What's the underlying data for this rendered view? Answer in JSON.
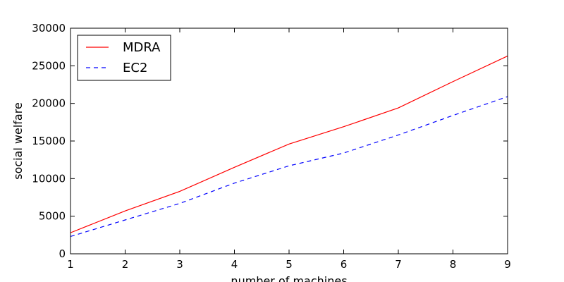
{
  "chart_data": {
    "type": "line",
    "title": "",
    "xlabel": "number of machines",
    "ylabel": "social welfare",
    "x": [
      1,
      2,
      3,
      4,
      5,
      6,
      7,
      8,
      9
    ],
    "xlim": [
      1,
      9
    ],
    "ylim": [
      0,
      30000
    ],
    "xticks": [
      1,
      2,
      3,
      4,
      5,
      6,
      7,
      8,
      9
    ],
    "yticks": [
      0,
      5000,
      10000,
      15000,
      20000,
      25000,
      30000
    ],
    "grid": false,
    "legend_position": "top-left",
    "series": [
      {
        "name": "MDRA",
        "color": "#ff0000",
        "dash": "solid",
        "values": [
          2800,
          5700,
          8300,
          11500,
          14600,
          16900,
          19400,
          22900,
          26300
        ]
      },
      {
        "name": "EC2",
        "color": "#0000ff",
        "dash": "dashed",
        "values": [
          2300,
          4500,
          6700,
          9400,
          11700,
          13400,
          15800,
          18400,
          20900
        ]
      }
    ]
  }
}
